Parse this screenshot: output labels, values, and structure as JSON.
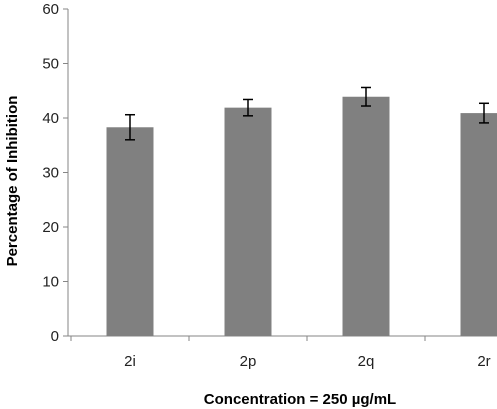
{
  "chart_data": {
    "type": "bar",
    "categories": [
      "2i",
      "2p",
      "2q",
      "2r"
    ],
    "values": [
      38.3,
      41.9,
      43.9,
      40.9
    ],
    "error": [
      2.3,
      1.5,
      1.7,
      1.8
    ],
    "xlabel": "Concentration = 250 µg/mL",
    "ylabel": "Percentage of Inhibition",
    "ylim": [
      0,
      60
    ],
    "yticks": [
      0,
      10,
      20,
      30,
      40,
      50,
      60
    ],
    "grid": false,
    "bar_color": "#808080",
    "axis_color": "#868686",
    "error_color": "#000000"
  }
}
